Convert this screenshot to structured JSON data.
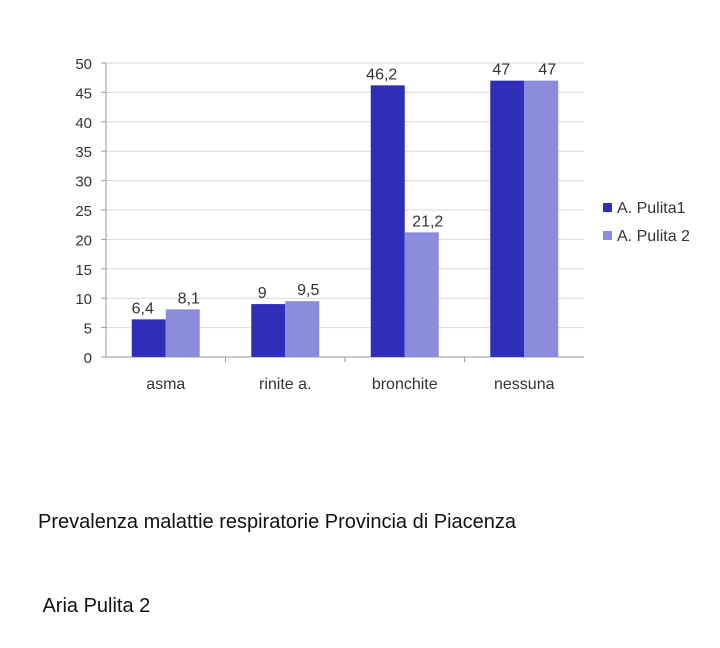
{
  "chart_data": {
    "type": "bar",
    "categories": [
      "asma",
      "rinite a.",
      "bronchite",
      "nessuna"
    ],
    "series": [
      {
        "name": "A. Pulita1",
        "values": [
          6.4,
          9,
          46.2,
          47
        ],
        "labels": [
          "6,4",
          "9",
          "46,2",
          "47"
        ],
        "color": "#2e2eb8"
      },
      {
        "name": "A. Pulita 2",
        "values": [
          8.1,
          9.5,
          21.2,
          47
        ],
        "labels": [
          "8,1",
          "9,5",
          "21,2",
          "47"
        ],
        "color": "#8c8cdc"
      }
    ],
    "ylim": [
      0,
      50
    ],
    "yticks": [
      0,
      5,
      10,
      15,
      20,
      25,
      30,
      35,
      40,
      45,
      50
    ],
    "grid": true,
    "legend_position": "right"
  },
  "caption": {
    "line1": "Prevalenza malattie respiratorie Provincia di Piacenza",
    "line2": " Aria Pulita 2"
  }
}
